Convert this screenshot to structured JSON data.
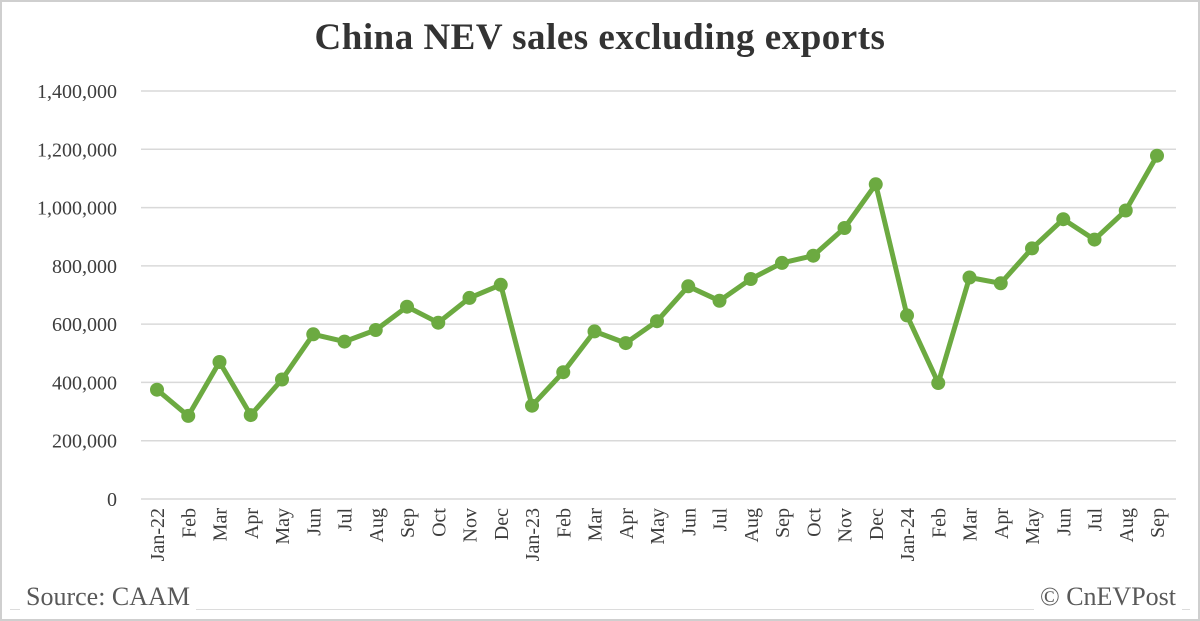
{
  "footer": {
    "source": "Source: CAAM",
    "copyright": "© CnEVPost"
  },
  "chart_data": {
    "type": "line",
    "title": "China NEV sales excluding exports",
    "categories": [
      "Jan-22",
      "Feb",
      "Mar",
      "Apr",
      "May",
      "Jun",
      "Jul",
      "Aug",
      "Sep",
      "Oct",
      "Nov",
      "Dec",
      "Jan-23",
      "Feb",
      "Mar",
      "Apr",
      "May",
      "Jun",
      "Jul",
      "Aug",
      "Sep",
      "Oct",
      "Nov",
      "Dec",
      "Jan-24",
      "Feb",
      "Mar",
      "Apr",
      "May",
      "Jun",
      "Jul",
      "Aug",
      "Sep"
    ],
    "series": [
      {
        "name": "NEV sales excluding exports",
        "color": "#6caa41",
        "values": [
          375000,
          285000,
          470000,
          288000,
          410000,
          565000,
          540000,
          580000,
          660000,
          605000,
          690000,
          735000,
          320000,
          435000,
          575000,
          535000,
          610000,
          730000,
          680000,
          755000,
          810000,
          835000,
          930000,
          1080000,
          630000,
          398000,
          760000,
          740000,
          860000,
          960000,
          890000,
          990000,
          1178000
        ]
      }
    ],
    "xlabel": "",
    "ylabel": "",
    "ylim": [
      0,
      1400000
    ],
    "yticks": [
      0,
      200000,
      400000,
      600000,
      800000,
      1000000,
      1200000,
      1400000
    ],
    "ytick_labels": [
      "0",
      "200,000",
      "400,000",
      "600,000",
      "800,000",
      "1,000,000",
      "1,200,000",
      "1,400,000"
    ],
    "grid": "horizontal",
    "gridline_color": "#d9d9d9",
    "legend": "none",
    "marker": "circle"
  }
}
